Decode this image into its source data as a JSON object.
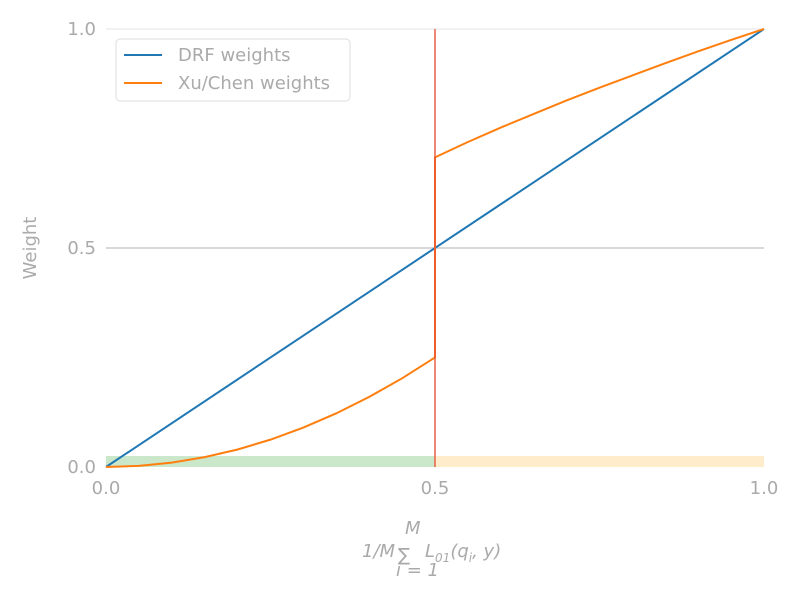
{
  "chart_data": {
    "type": "line",
    "xlabel_math": {
      "prefix": "1/M",
      "sum_upper": "M",
      "sum_lower": "i = 1",
      "term_L": "L",
      "term_sub": "01",
      "term_args": "(q",
      "term_args_sub": "i",
      "term_args_end": ", y)"
    },
    "ylabel": "Weight",
    "xlim": [
      0,
      1
    ],
    "ylim": [
      0,
      1
    ],
    "x_ticks": [
      0.0,
      0.5,
      1.0
    ],
    "x_tick_labels": [
      "0.0",
      "0.5",
      "1.0"
    ],
    "y_ticks": [
      0.0,
      0.5,
      1.0
    ],
    "y_tick_labels": [
      "0.0",
      "0.5",
      "1.0"
    ],
    "grid": "horizontal",
    "legend_position": "top-left",
    "series": [
      {
        "name": "DRF weights",
        "color": "#1f77b4",
        "x": [
          0.0,
          1.0
        ],
        "y": [
          0.0,
          1.0
        ]
      },
      {
        "name": "Xu/Chen weights",
        "color": "#ff7f0e",
        "x": [
          0.0,
          0.05,
          0.1,
          0.15,
          0.2,
          0.25,
          0.3,
          0.35,
          0.4,
          0.45,
          0.5,
          0.5,
          0.55,
          0.6,
          0.65,
          0.7,
          0.75,
          0.8,
          0.85,
          0.9,
          0.95,
          1.0
        ],
        "y": [
          0.0,
          0.0025,
          0.01,
          0.0225,
          0.04,
          0.0625,
          0.09,
          0.1225,
          0.16,
          0.2025,
          0.25,
          0.707,
          0.742,
          0.775,
          0.806,
          0.837,
          0.866,
          0.894,
          0.922,
          0.949,
          0.975,
          1.0
        ]
      }
    ],
    "vertical_line": {
      "x": 0.5,
      "color": "#e8503a"
    },
    "bands": [
      {
        "x0": 0.0,
        "x1": 0.5,
        "y0": 0.0,
        "y1": 0.025,
        "color": "#2ca02c",
        "opacity": 0.25
      },
      {
        "x0": 0.5,
        "x1": 1.0,
        "y0": 0.0,
        "y1": 0.025,
        "color": "#ffb52e",
        "opacity": 0.25
      }
    ]
  }
}
